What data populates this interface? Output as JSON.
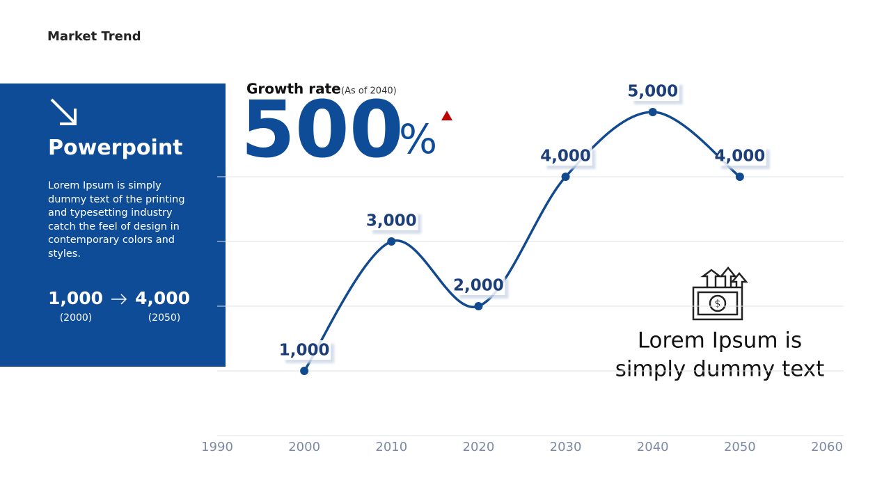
{
  "header": {
    "title": "Market Trend"
  },
  "side_panel": {
    "heading": "Powerpoint",
    "body": "Lorem Ipsum is simply dummy text of the printing and typesetting industry catch the feel of design in contemporary colors and styles.",
    "from": {
      "value": "1,000",
      "year": "(2000)"
    },
    "to": {
      "value": "4,000",
      "year": "(2050)"
    }
  },
  "headline": {
    "label": "Growth rate",
    "note": "(As of 2040)",
    "value": "500",
    "unit": "%"
  },
  "callout": {
    "lines": [
      "Lorem Ipsum is",
      "simply dummy text"
    ]
  },
  "chart_data": {
    "type": "line",
    "x": [
      2000,
      2010,
      2020,
      2030,
      2040,
      2050
    ],
    "values": [
      1000,
      3000,
      2000,
      4000,
      5000,
      4000
    ],
    "value_labels": [
      "1,000",
      "3,000",
      "2,000",
      "4,000",
      "5,000",
      "4,000"
    ],
    "color": "#124a8f",
    "xlim": [
      1990,
      2060
    ],
    "xticks": [
      1990,
      2000,
      2010,
      2020,
      2030,
      2040,
      2050,
      2060
    ],
    "ylim": [
      0,
      5000
    ],
    "yticks": [
      0,
      1000,
      2000,
      3000,
      4000
    ],
    "grid": true
  }
}
